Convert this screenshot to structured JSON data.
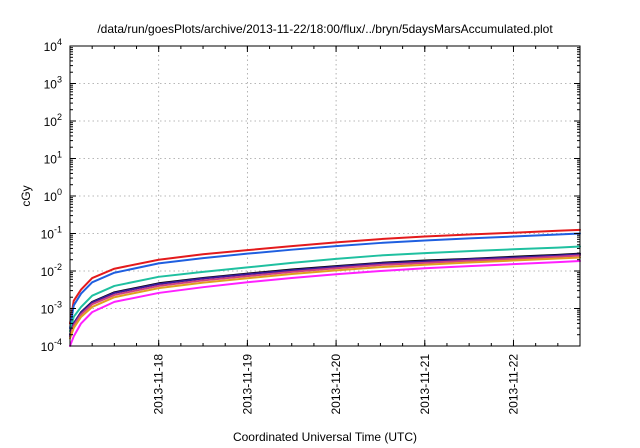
{
  "chart_data": {
    "type": "line",
    "title": "/data/run/goesPlots/archive/2013-11-22/18:00/flux/../bryn/5daysMarsAccumulated.plot",
    "xlabel": "Coordinated Universal Time (UTC)",
    "ylabel": "cGy",
    "yscale": "log",
    "ylim": [
      0.0001,
      10000
    ],
    "xlim": [
      "2013-11-17 00:00",
      "2013-11-22 18:00"
    ],
    "grid": true,
    "x_tick_labels": [
      "2013-11-18",
      "2013-11-19",
      "2013-11-20",
      "2013-11-21",
      "2013-11-22"
    ],
    "y_tick_labels": [
      {
        "base": "10",
        "exp": "-4",
        "value": 0.0001
      },
      {
        "base": "10",
        "exp": "-3",
        "value": 0.001
      },
      {
        "base": "10",
        "exp": "-2",
        "value": 0.01
      },
      {
        "base": "10",
        "exp": "-1",
        "value": 0.1
      },
      {
        "base": "10",
        "exp": "0",
        "value": 1
      },
      {
        "base": "10",
        "exp": "1",
        "value": 10
      },
      {
        "base": "10",
        "exp": "2",
        "value": 100
      },
      {
        "base": "10",
        "exp": "3",
        "value": 1000
      },
      {
        "base": "10",
        "exp": "4",
        "value": 10000
      }
    ],
    "x": [
      "2013-11-17 00:00",
      "2013-11-17 01:00",
      "2013-11-17 03:00",
      "2013-11-17 06:00",
      "2013-11-17 12:00",
      "2013-11-18 00:00",
      "2013-11-18 12:00",
      "2013-11-19 00:00",
      "2013-11-19 12:00",
      "2013-11-20 00:00",
      "2013-11-20 12:00",
      "2013-11-21 00:00",
      "2013-11-21 12:00",
      "2013-11-22 00:00",
      "2013-11-22 12:00",
      "2013-11-22 18:00"
    ],
    "series": [
      {
        "color": "#e31a1c",
        "values": [
          0.0004,
          0.0016,
          0.0032,
          0.0065,
          0.0115,
          0.02,
          0.028,
          0.036,
          0.046,
          0.058,
          0.071,
          0.083,
          0.094,
          0.105,
          0.118,
          0.125
        ]
      },
      {
        "color": "#1f5fe0",
        "values": [
          0.0003,
          0.0012,
          0.0025,
          0.005,
          0.009,
          0.016,
          0.022,
          0.029,
          0.037,
          0.046,
          0.056,
          0.065,
          0.074,
          0.083,
          0.094,
          0.1
        ]
      },
      {
        "color": "#1fc0a0",
        "values": [
          0.00025,
          0.0006,
          0.0011,
          0.0022,
          0.004,
          0.007,
          0.0095,
          0.0125,
          0.0165,
          0.021,
          0.026,
          0.03,
          0.034,
          0.038,
          0.042,
          0.045
        ]
      },
      {
        "color": "#000000",
        "values": [
          0.0002,
          0.0004,
          0.0008,
          0.0015,
          0.0027,
          0.0047,
          0.0065,
          0.0085,
          0.011,
          0.0135,
          0.0165,
          0.019,
          0.021,
          0.024,
          0.027,
          0.029
        ]
      },
      {
        "color": "#3a1a9a",
        "values": [
          0.0002,
          0.0004,
          0.00078,
          0.00145,
          0.0026,
          0.0045,
          0.0063,
          0.0082,
          0.0105,
          0.013,
          0.016,
          0.018,
          0.0205,
          0.023,
          0.026,
          0.028
        ]
      },
      {
        "color": "#d04080",
        "values": [
          0.00018,
          0.00035,
          0.0007,
          0.0013,
          0.0023,
          0.004,
          0.0056,
          0.0073,
          0.0095,
          0.0118,
          0.0145,
          0.0165,
          0.0188,
          0.021,
          0.024,
          0.026
        ]
      },
      {
        "color": "#e0a020",
        "values": [
          0.00016,
          0.0003,
          0.0006,
          0.0011,
          0.002,
          0.0035,
          0.0049,
          0.0064,
          0.0083,
          0.0104,
          0.0127,
          0.0147,
          0.0168,
          0.019,
          0.0215,
          0.023
        ]
      },
      {
        "color": "#ff20ff",
        "values": [
          0.0001,
          0.00018,
          0.0004,
          0.0008,
          0.0015,
          0.0026,
          0.0037,
          0.005,
          0.0065,
          0.0082,
          0.01,
          0.0118,
          0.0135,
          0.0152,
          0.0172,
          0.0185
        ]
      }
    ]
  }
}
